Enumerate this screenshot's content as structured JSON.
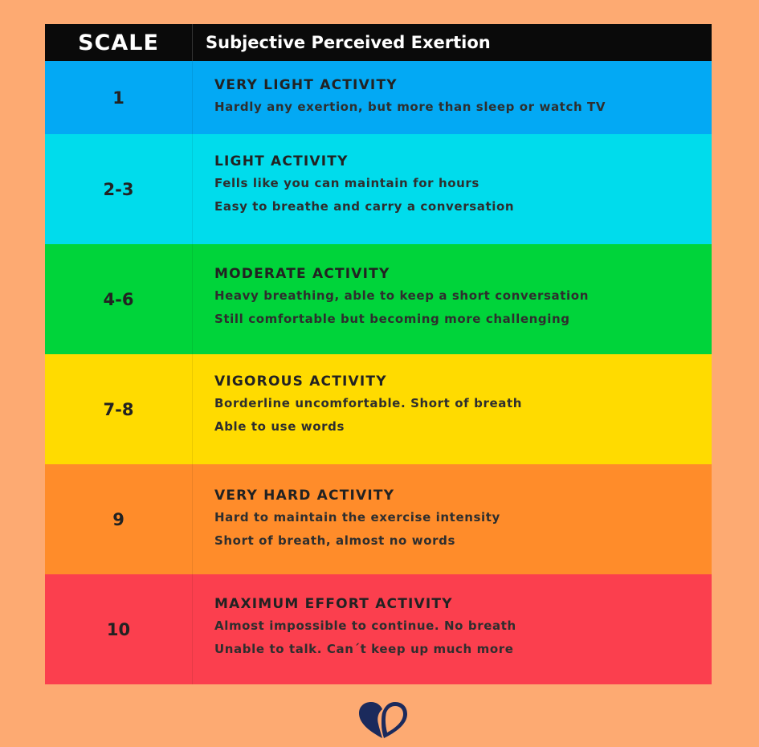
{
  "header": {
    "scale_label": "SCALE",
    "title": "Subjective Perceived Exertion"
  },
  "rows": [
    {
      "scale": "1",
      "title": "VERY LIGHT ACTIVITY",
      "lines": [
        "Hardly any exertion, but more than sleep or watch TV"
      ],
      "color": "#03a9f4"
    },
    {
      "scale": "2-3",
      "title": "LIGHT ACTIVITY",
      "lines": [
        "Fells like you can maintain for hours",
        "Easy to breathe and carry a conversation"
      ],
      "color": "#00dcec"
    },
    {
      "scale": "4-6",
      "title": "MODERATE ACTIVITY",
      "lines": [
        "Heavy breathing, able to keep a short conversation",
        "Still comfortable but becoming more challenging"
      ],
      "color": "#00d43a"
    },
    {
      "scale": "7-8",
      "title": "VIGOROUS ACTIVITY",
      "lines": [
        "Borderline uncomfortable. Short of breath",
        "Able to use words"
      ],
      "color": "#ffdb00"
    },
    {
      "scale": "9",
      "title": "VERY HARD ACTIVITY",
      "lines": [
        "Hard to maintain the exercise intensity",
        "Short of breath, almost no words"
      ],
      "color": "#ff8c2a"
    },
    {
      "scale": "10",
      "title": "MAXIMUM EFFORT ACTIVITY",
      "lines": [
        "Almost impossible to continue. No breath",
        "Unable to talk. Can´t keep up much more"
      ],
      "color": "#fb3f4e"
    }
  ],
  "colors": {
    "page_background": "#fdaa72",
    "header_background": "#0a0a0a",
    "logo_navy": "#1b2a5c"
  },
  "logo_icon": "heart-logo-icon"
}
